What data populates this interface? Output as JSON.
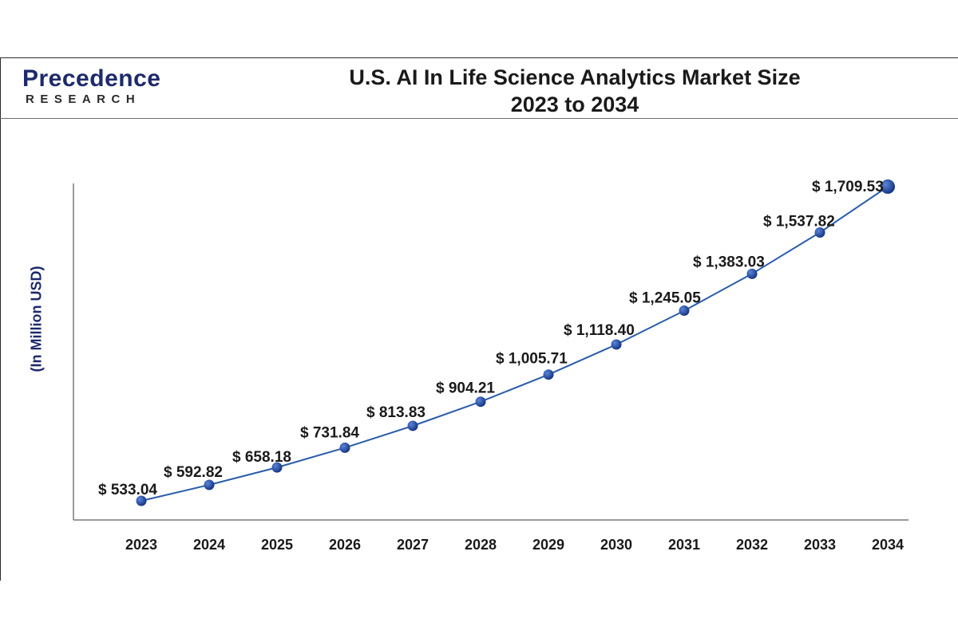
{
  "header": {
    "logo_word": "Precedence",
    "logo_sub": "RESEARCH",
    "title_line1": "U.S. AI In Life Science Analytics Market Size",
    "title_line2": "2023 to 2034"
  },
  "colors": {
    "line": "#2a5caa",
    "marker": "#1a3a8f",
    "marker_highlight": "#4a78d0",
    "label": "#1a1a1a",
    "axis": "#7a7a7a"
  },
  "chart_data": {
    "type": "line",
    "title": "U.S. AI In Life Science Analytics Market Size 2023 to 2034",
    "xlabel": "",
    "ylabel": "(In Million USD)",
    "categories": [
      "2023",
      "2024",
      "2025",
      "2026",
      "2027",
      "2028",
      "2029",
      "2030",
      "2031",
      "2032",
      "2033",
      "2034"
    ],
    "series": [
      {
        "values": [
          533.04,
          592.82,
          658.18,
          731.84,
          813.83,
          904.21,
          1005.71,
          1118.4,
          1245.05,
          1383.03,
          1537.82,
          1709.53
        ]
      }
    ],
    "data_labels": [
      "$ 533.04",
      "$ 592.82",
      "$ 658.18",
      "$ 731.84",
      "$ 813.83",
      "$ 904.21",
      "$ 1,005.71",
      "$ 1,118.40",
      "$ 1,245.05",
      "$ 1,383.03",
      "$ 1,537.82",
      "$ 1,709.53"
    ],
    "grid": false,
    "legend": "none"
  }
}
